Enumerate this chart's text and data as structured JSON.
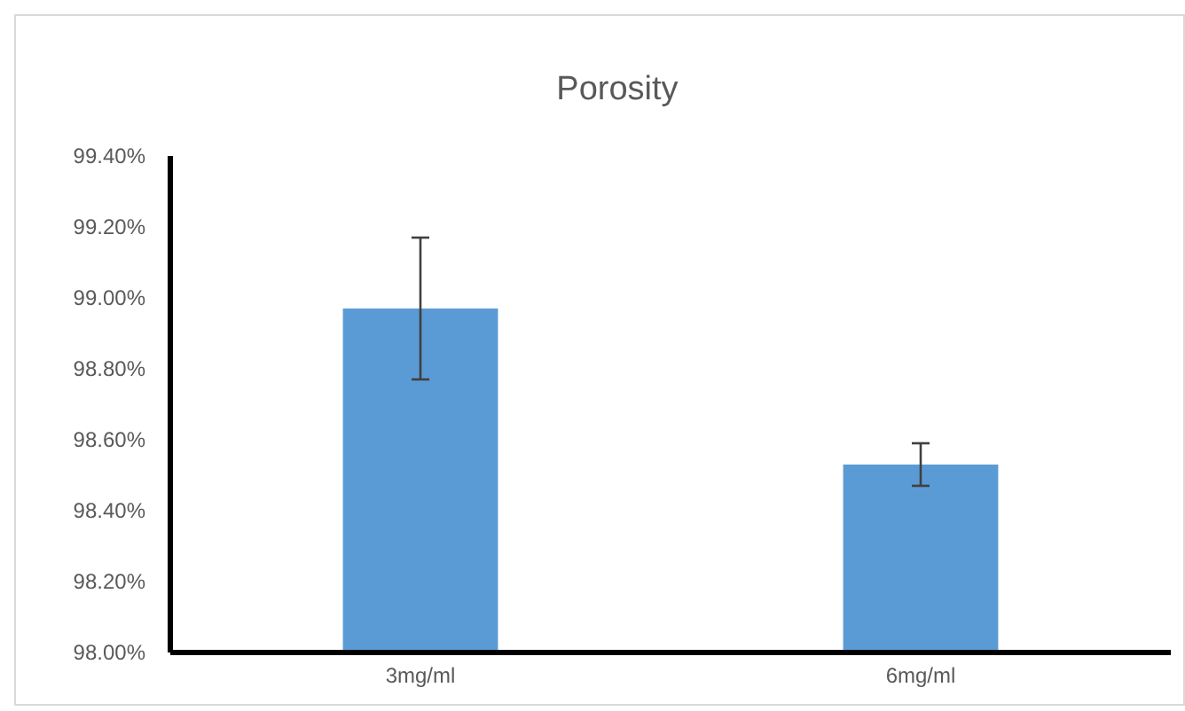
{
  "chart_data": {
    "type": "bar",
    "title": "Porosity",
    "categories": [
      "3mg/ml",
      "6mg/ml"
    ],
    "values": [
      98.97,
      98.53
    ],
    "errors": [
      0.2,
      0.06
    ],
    "color": "#5b9bd5",
    "ylim": [
      98.0,
      99.4
    ],
    "yticks": [
      {
        "value": 98.0,
        "label": "98.00%"
      },
      {
        "value": 98.2,
        "label": "98.20%"
      },
      {
        "value": 98.4,
        "label": "98.40%"
      },
      {
        "value": 98.6,
        "label": "98.60%"
      },
      {
        "value": 98.8,
        "label": "98.80%"
      },
      {
        "value": 99.0,
        "label": "99.00%"
      },
      {
        "value": 99.2,
        "label": "99.20%"
      },
      {
        "value": 99.4,
        "label": "99.40%"
      }
    ],
    "grid": false,
    "legend": false
  }
}
